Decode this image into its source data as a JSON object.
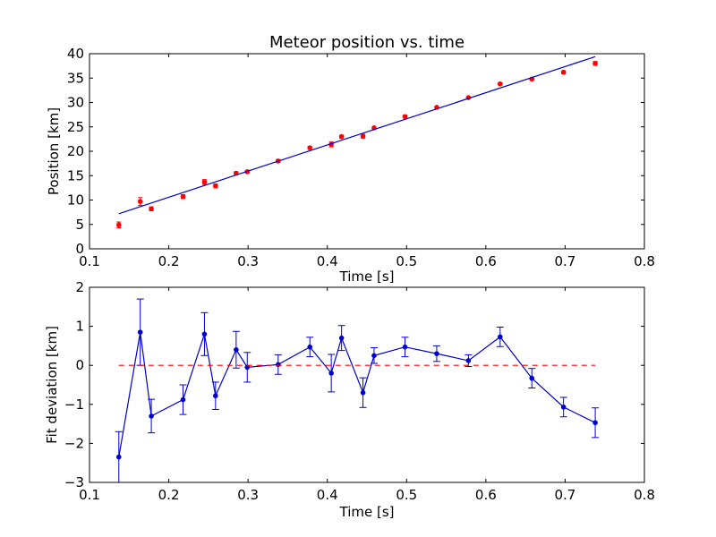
{
  "chart_data": [
    {
      "type": "scatter",
      "title": "Meteor position vs. time",
      "xlabel": "Time [s]",
      "ylabel": "Position [km]",
      "xlim": [
        0.1,
        0.8
      ],
      "ylim": [
        0,
        40
      ],
      "xticks": [
        "0.1",
        "0.2",
        "0.3",
        "0.4",
        "0.5",
        "0.6",
        "0.7",
        "0.8"
      ],
      "yticks": [
        "0",
        "5",
        "10",
        "15",
        "20",
        "25",
        "30",
        "35",
        "40"
      ],
      "grid": false,
      "series": [
        {
          "kind": "errorbar-points",
          "color": "#ff0000",
          "x": [
            0.137,
            0.164,
            0.178,
            0.218,
            0.245,
            0.259,
            0.285,
            0.299,
            0.338,
            0.378,
            0.405,
            0.418,
            0.445,
            0.459,
            0.498,
            0.538,
            0.578,
            0.618,
            0.658,
            0.698,
            0.738
          ],
          "y": [
            4.9,
            9.7,
            8.2,
            10.7,
            13.7,
            12.9,
            15.5,
            15.8,
            18.0,
            20.7,
            21.4,
            23.0,
            23.1,
            24.8,
            27.1,
            29.0,
            31.0,
            33.8,
            34.8,
            36.2,
            38.0
          ],
          "yerr": [
            0.6,
            0.8,
            0.4,
            0.4,
            0.5,
            0.4,
            0.3,
            0.3,
            0.3,
            0.3,
            0.5,
            0.3,
            0.4,
            0.2,
            0.3,
            0.2,
            0.2,
            0.2,
            0.2,
            0.3,
            0.4
          ]
        },
        {
          "kind": "line",
          "color": "#0000cc",
          "x": [
            0.137,
            0.738
          ],
          "y": [
            7.2,
            39.4
          ]
        }
      ]
    },
    {
      "type": "line",
      "title": "",
      "xlabel": "Time [s]",
      "ylabel": "Fit deviation [km]",
      "xlim": [
        0.1,
        0.8
      ],
      "ylim": [
        -3,
        2
      ],
      "xticks": [
        "0.1",
        "0.2",
        "0.3",
        "0.4",
        "0.5",
        "0.6",
        "0.7",
        "0.8"
      ],
      "yticks": [
        "−3",
        "−2",
        "−1",
        "0",
        "1",
        "2"
      ],
      "grid": false,
      "series": [
        {
          "kind": "errorbar-line",
          "color": "#0000cc",
          "x": [
            0.137,
            0.164,
            0.178,
            0.218,
            0.245,
            0.259,
            0.285,
            0.299,
            0.338,
            0.378,
            0.405,
            0.418,
            0.445,
            0.459,
            0.498,
            0.538,
            0.578,
            0.618,
            0.658,
            0.698,
            0.738
          ],
          "y": [
            -2.35,
            0.85,
            -1.3,
            -0.88,
            0.8,
            -0.78,
            0.4,
            -0.05,
            0.02,
            0.47,
            -0.2,
            0.7,
            -0.7,
            0.25,
            0.47,
            0.3,
            0.12,
            0.73,
            -0.33,
            -1.07,
            -1.47
          ],
          "yerr": [
            0.65,
            0.85,
            0.43,
            0.38,
            0.55,
            0.35,
            0.47,
            0.38,
            0.25,
            0.25,
            0.48,
            0.32,
            0.38,
            0.2,
            0.25,
            0.2,
            0.15,
            0.25,
            0.25,
            0.25,
            0.38
          ]
        },
        {
          "kind": "dashed-line",
          "color": "#ff0000",
          "x": [
            0.137,
            0.738
          ],
          "y": [
            0,
            0
          ]
        }
      ]
    }
  ]
}
